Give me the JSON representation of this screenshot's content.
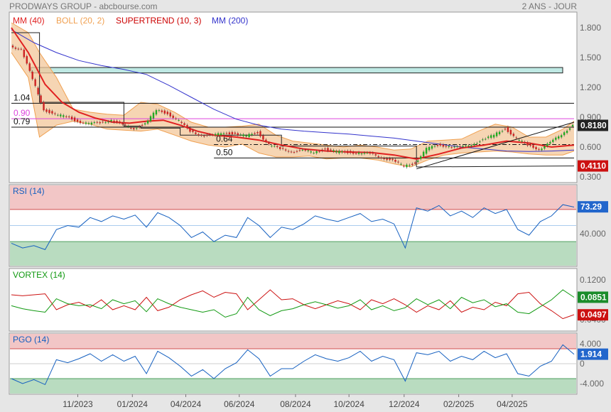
{
  "header": {
    "title": "PRODWAYS GROUP - abcbourse.com",
    "period": "2 ANS - JOUR"
  },
  "colors": {
    "price_up": "#22aa22",
    "price_down": "#cc2222",
    "mm40": "#e02020",
    "boll": "#f0a050",
    "boll_fill": "#f3c79a",
    "supertrend": "#cc0000",
    "mm200": "#3333cc",
    "hline": "#111111",
    "hline_magenta": "#dd44dd",
    "zone": "#bfe9e4",
    "rsi": "#1560c0",
    "vortex_plus": "#119911",
    "vortex_minus": "#cc1111",
    "pgo": "#1560c0",
    "overbought": "#f2c6c6",
    "oversold": "#b9dcc0",
    "badge_green": "#1a8c2a",
    "badge_red": "#cc1111",
    "badge_blue": "#2266cc",
    "badge_dark": "#222222"
  },
  "chart_data": [
    {
      "type": "line",
      "name": "price",
      "legend": [
        {
          "label": "MM (40)",
          "color": "#e02020"
        },
        {
          "label": "BOLL (20, 2)",
          "color": "#f0a050"
        },
        {
          "label": "SUPERTREND (10, 3)",
          "color": "#cc0000"
        },
        {
          "label": "MM (200)",
          "color": "#3333cc"
        }
      ],
      "yticks": [
        "1.800",
        "1.500",
        "1.200",
        "0.900",
        "0.600",
        "0.300"
      ],
      "ytick_values": [
        1.8,
        1.5,
        1.2,
        0.9,
        0.6,
        0.3
      ],
      "ylim": [
        0.25,
        1.95
      ],
      "xlim": [
        0,
        100
      ],
      "last_price": "0.8180",
      "supertrend_value": "0.4110",
      "hlines": [
        {
          "label": "1.04",
          "y": 1.04,
          "x_start": 0,
          "style": "solid"
        },
        {
          "label": "0.90",
          "y": 0.885,
          "x_start": 0,
          "style": "magenta"
        },
        {
          "label": "0.79",
          "y": 0.8,
          "x_start": 0,
          "style": "solid"
        },
        {
          "label": "0.64",
          "y": 0.625,
          "x_start": 36,
          "style": "dashdot"
        },
        {
          "label": "0.50",
          "y": 0.49,
          "x_start": 36,
          "style": "solid"
        }
      ],
      "zone": {
        "x_start": 3.5,
        "x_end": 100,
        "y_low": 1.345,
        "y_high": 1.4
      },
      "trendline": {
        "x": [
          72,
          100
        ],
        "y": [
          0.38,
          0.85
        ]
      },
      "close": {
        "x": [
          0,
          2,
          4,
          6,
          8,
          10,
          12,
          14,
          16,
          18,
          20,
          22,
          24,
          26,
          28,
          30,
          32,
          34,
          36,
          38,
          40,
          42,
          44,
          46,
          48,
          50,
          52,
          54,
          56,
          58,
          60,
          62,
          64,
          66,
          68,
          70,
          72,
          74,
          76,
          78,
          80,
          82,
          84,
          86,
          88,
          90,
          92,
          94,
          96,
          98,
          100
        ],
        "y": [
          1.62,
          1.58,
          1.28,
          0.98,
          0.92,
          0.91,
          0.86,
          0.83,
          0.85,
          0.87,
          0.82,
          0.79,
          0.83,
          0.97,
          0.94,
          0.86,
          0.76,
          0.72,
          0.71,
          0.75,
          0.73,
          0.71,
          0.75,
          0.62,
          0.58,
          0.56,
          0.56,
          0.55,
          0.58,
          0.55,
          0.55,
          0.54,
          0.53,
          0.5,
          0.46,
          0.41,
          0.44,
          0.58,
          0.62,
          0.61,
          0.59,
          0.63,
          0.67,
          0.72,
          0.79,
          0.68,
          0.62,
          0.58,
          0.64,
          0.73,
          0.82
        ]
      },
      "mm40": {
        "x": [
          0,
          3,
          6,
          9,
          12,
          15,
          18,
          21,
          24,
          27,
          30,
          33,
          36,
          40,
          44,
          48,
          52,
          56,
          60,
          64,
          68,
          72,
          76,
          80,
          84,
          88,
          92,
          96,
          100
        ],
        "y": [
          1.8,
          1.55,
          1.23,
          1.05,
          0.95,
          0.89,
          0.85,
          0.84,
          0.86,
          0.87,
          0.82,
          0.76,
          0.72,
          0.7,
          0.67,
          0.62,
          0.58,
          0.56,
          0.55,
          0.545,
          0.52,
          0.48,
          0.53,
          0.59,
          0.62,
          0.66,
          0.64,
          0.6,
          0.62
        ]
      },
      "mm200": {
        "x": [
          0,
          4,
          8,
          12,
          16,
          20,
          24,
          28,
          32,
          36,
          40,
          44,
          48,
          52,
          56,
          60,
          64,
          68,
          72,
          76,
          80,
          84,
          88,
          92,
          96,
          100
        ],
        "y": [
          1.78,
          1.65,
          1.55,
          1.47,
          1.42,
          1.38,
          1.33,
          1.22,
          1.1,
          0.98,
          0.88,
          0.82,
          0.78,
          0.76,
          0.745,
          0.73,
          0.71,
          0.69,
          0.66,
          0.63,
          0.6,
          0.58,
          0.56,
          0.555,
          0.56,
          0.57
        ]
      },
      "boll_upper": {
        "x": [
          0,
          3,
          5,
          8,
          11,
          14,
          17,
          20,
          23,
          26,
          29,
          32,
          35,
          38,
          41,
          44,
          47,
          50,
          53,
          56,
          59,
          62,
          65,
          68,
          71,
          74,
          77,
          80,
          83,
          86,
          89,
          92,
          95,
          98,
          100
        ],
        "y": [
          1.85,
          1.75,
          1.55,
          1.3,
          0.98,
          0.95,
          0.93,
          0.92,
          1.05,
          1.03,
          0.95,
          0.85,
          0.8,
          0.8,
          0.81,
          0.83,
          0.72,
          0.66,
          0.64,
          0.62,
          0.6,
          0.62,
          0.6,
          0.57,
          0.58,
          0.66,
          0.67,
          0.68,
          0.76,
          0.83,
          0.8,
          0.7,
          0.7,
          0.78,
          0.86
        ]
      },
      "boll_lower": {
        "x": [
          0,
          3,
          5,
          8,
          11,
          14,
          17,
          20,
          23,
          26,
          29,
          32,
          35,
          38,
          41,
          44,
          47,
          50,
          53,
          56,
          59,
          62,
          65,
          68,
          71,
          74,
          77,
          80,
          83,
          86,
          89,
          92,
          95,
          98,
          100
        ],
        "y": [
          1.55,
          1.3,
          0.7,
          0.82,
          0.86,
          0.83,
          0.78,
          0.77,
          0.76,
          0.78,
          0.72,
          0.66,
          0.62,
          0.6,
          0.63,
          0.54,
          0.5,
          0.5,
          0.51,
          0.48,
          0.49,
          0.49,
          0.47,
          0.43,
          0.4,
          0.47,
          0.52,
          0.54,
          0.55,
          0.56,
          0.55,
          0.53,
          0.52,
          0.52,
          0.56
        ]
      },
      "supertrend": {
        "x": [
          0,
          5,
          5,
          20,
          20,
          23,
          23,
          30,
          30,
          48,
          48,
          72,
          72,
          100
        ],
        "y": [
          1.75,
          1.75,
          1.05,
          1.05,
          0.81,
          0.81,
          0.79,
          0.79,
          0.72,
          0.72,
          0.61,
          0.61,
          0.4,
          0.41
        ]
      }
    },
    {
      "type": "line",
      "name": "rsi",
      "label": "RSI (14)",
      "ylim": [
        0,
        100
      ],
      "yticks": [
        "40.000"
      ],
      "ytick_values": [
        40
      ],
      "overbought": 70,
      "oversold": 30,
      "midline": 50,
      "last_value": "73.29",
      "x": [
        0,
        2,
        4,
        6,
        8,
        10,
        12,
        14,
        16,
        18,
        20,
        22,
        24,
        26,
        28,
        30,
        32,
        34,
        36,
        38,
        40,
        42,
        44,
        46,
        48,
        50,
        52,
        54,
        56,
        58,
        60,
        62,
        64,
        66,
        68,
        70,
        72,
        74,
        76,
        78,
        80,
        82,
        84,
        86,
        88,
        90,
        92,
        94,
        96,
        98,
        100
      ],
      "y": [
        28,
        22,
        25,
        20,
        45,
        50,
        48,
        60,
        55,
        62,
        58,
        63,
        48,
        66,
        60,
        50,
        35,
        42,
        30,
        38,
        35,
        60,
        50,
        35,
        48,
        45,
        52,
        62,
        58,
        55,
        60,
        65,
        55,
        58,
        52,
        22,
        72,
        68,
        75,
        62,
        68,
        60,
        72,
        65,
        70,
        45,
        38,
        55,
        62,
        76,
        73
      ]
    },
    {
      "type": "line",
      "name": "vortex",
      "label": "VORTEX (14)",
      "ylim": [
        0.02,
        0.14
      ],
      "yticks": [
        "0.1200",
        "0.0400"
      ],
      "ytick_values": [
        0.12,
        0.04
      ],
      "last_plus": "0.0851",
      "last_minus": "0.0497",
      "x": [
        0,
        2,
        4,
        6,
        8,
        10,
        12,
        14,
        16,
        18,
        20,
        22,
        24,
        26,
        28,
        30,
        32,
        34,
        36,
        38,
        40,
        42,
        44,
        46,
        48,
        50,
        52,
        54,
        56,
        58,
        60,
        62,
        64,
        66,
        68,
        70,
        72,
        74,
        76,
        78,
        80,
        82,
        84,
        86,
        88,
        90,
        92,
        94,
        96,
        98,
        100
      ],
      "plus": [
        0.068,
        0.062,
        0.058,
        0.055,
        0.082,
        0.072,
        0.068,
        0.07,
        0.062,
        0.08,
        0.072,
        0.078,
        0.056,
        0.082,
        0.072,
        0.065,
        0.06,
        0.055,
        0.06,
        0.045,
        0.052,
        0.085,
        0.06,
        0.048,
        0.058,
        0.062,
        0.07,
        0.076,
        0.07,
        0.063,
        0.068,
        0.08,
        0.06,
        0.068,
        0.058,
        0.064,
        0.082,
        0.07,
        0.08,
        0.062,
        0.085,
        0.074,
        0.08,
        0.066,
        0.072,
        0.055,
        0.052,
        0.066,
        0.08,
        0.1,
        0.085
      ],
      "minus": [
        0.09,
        0.088,
        0.09,
        0.092,
        0.06,
        0.07,
        0.075,
        0.065,
        0.08,
        0.06,
        0.068,
        0.06,
        0.085,
        0.058,
        0.065,
        0.08,
        0.09,
        0.098,
        0.085,
        0.095,
        0.092,
        0.06,
        0.08,
        0.1,
        0.08,
        0.082,
        0.07,
        0.062,
        0.07,
        0.078,
        0.072,
        0.06,
        0.08,
        0.072,
        0.082,
        0.07,
        0.055,
        0.068,
        0.06,
        0.078,
        0.055,
        0.065,
        0.06,
        0.075,
        0.068,
        0.092,
        0.095,
        0.072,
        0.058,
        0.042,
        0.05
      ]
    },
    {
      "type": "line",
      "name": "pgo",
      "label": "PGO (14)",
      "ylim": [
        -6,
        6
      ],
      "yticks": [
        "4.000",
        "0",
        "-4.000"
      ],
      "ytick_values": [
        4,
        0,
        -4
      ],
      "overbought": 3,
      "oversold": -3,
      "last_value": "1.914",
      "x": [
        0,
        2,
        4,
        6,
        8,
        10,
        12,
        14,
        16,
        18,
        20,
        22,
        24,
        26,
        28,
        30,
        32,
        34,
        36,
        38,
        40,
        42,
        44,
        46,
        48,
        50,
        52,
        54,
        56,
        58,
        60,
        62,
        64,
        66,
        68,
        70,
        72,
        74,
        76,
        78,
        80,
        82,
        84,
        86,
        88,
        90,
        92,
        94,
        96,
        98,
        100
      ],
      "y": [
        -3.0,
        -4.0,
        -3.2,
        -4.2,
        0.8,
        0.2,
        1.0,
        2.0,
        0.5,
        1.8,
        0.5,
        1.5,
        -2.0,
        2.5,
        1.2,
        -0.5,
        -2.5,
        -1.2,
        -3.0,
        -1.0,
        0.2,
        2.8,
        1.0,
        -2.5,
        -1.0,
        -1.0,
        0.5,
        1.8,
        1.0,
        0.5,
        1.2,
        2.5,
        0.5,
        1.5,
        0.8,
        -3.5,
        2.2,
        1.8,
        2.5,
        0.5,
        1.5,
        0.8,
        2.5,
        1.2,
        2.0,
        -2.0,
        -2.5,
        -0.5,
        0.5,
        3.8,
        1.9
      ]
    }
  ],
  "x_axis": {
    "labels": [
      "11/2023",
      "01/2024",
      "04/2024",
      "06/2024",
      "08/2024",
      "10/2024",
      "12/2024",
      "02/2025",
      "04/2025"
    ],
    "label_values": [
      11.8,
      21.5,
      31.0,
      40.5,
      50.5,
      60.0,
      69.8,
      79.5,
      89.0
    ]
  }
}
